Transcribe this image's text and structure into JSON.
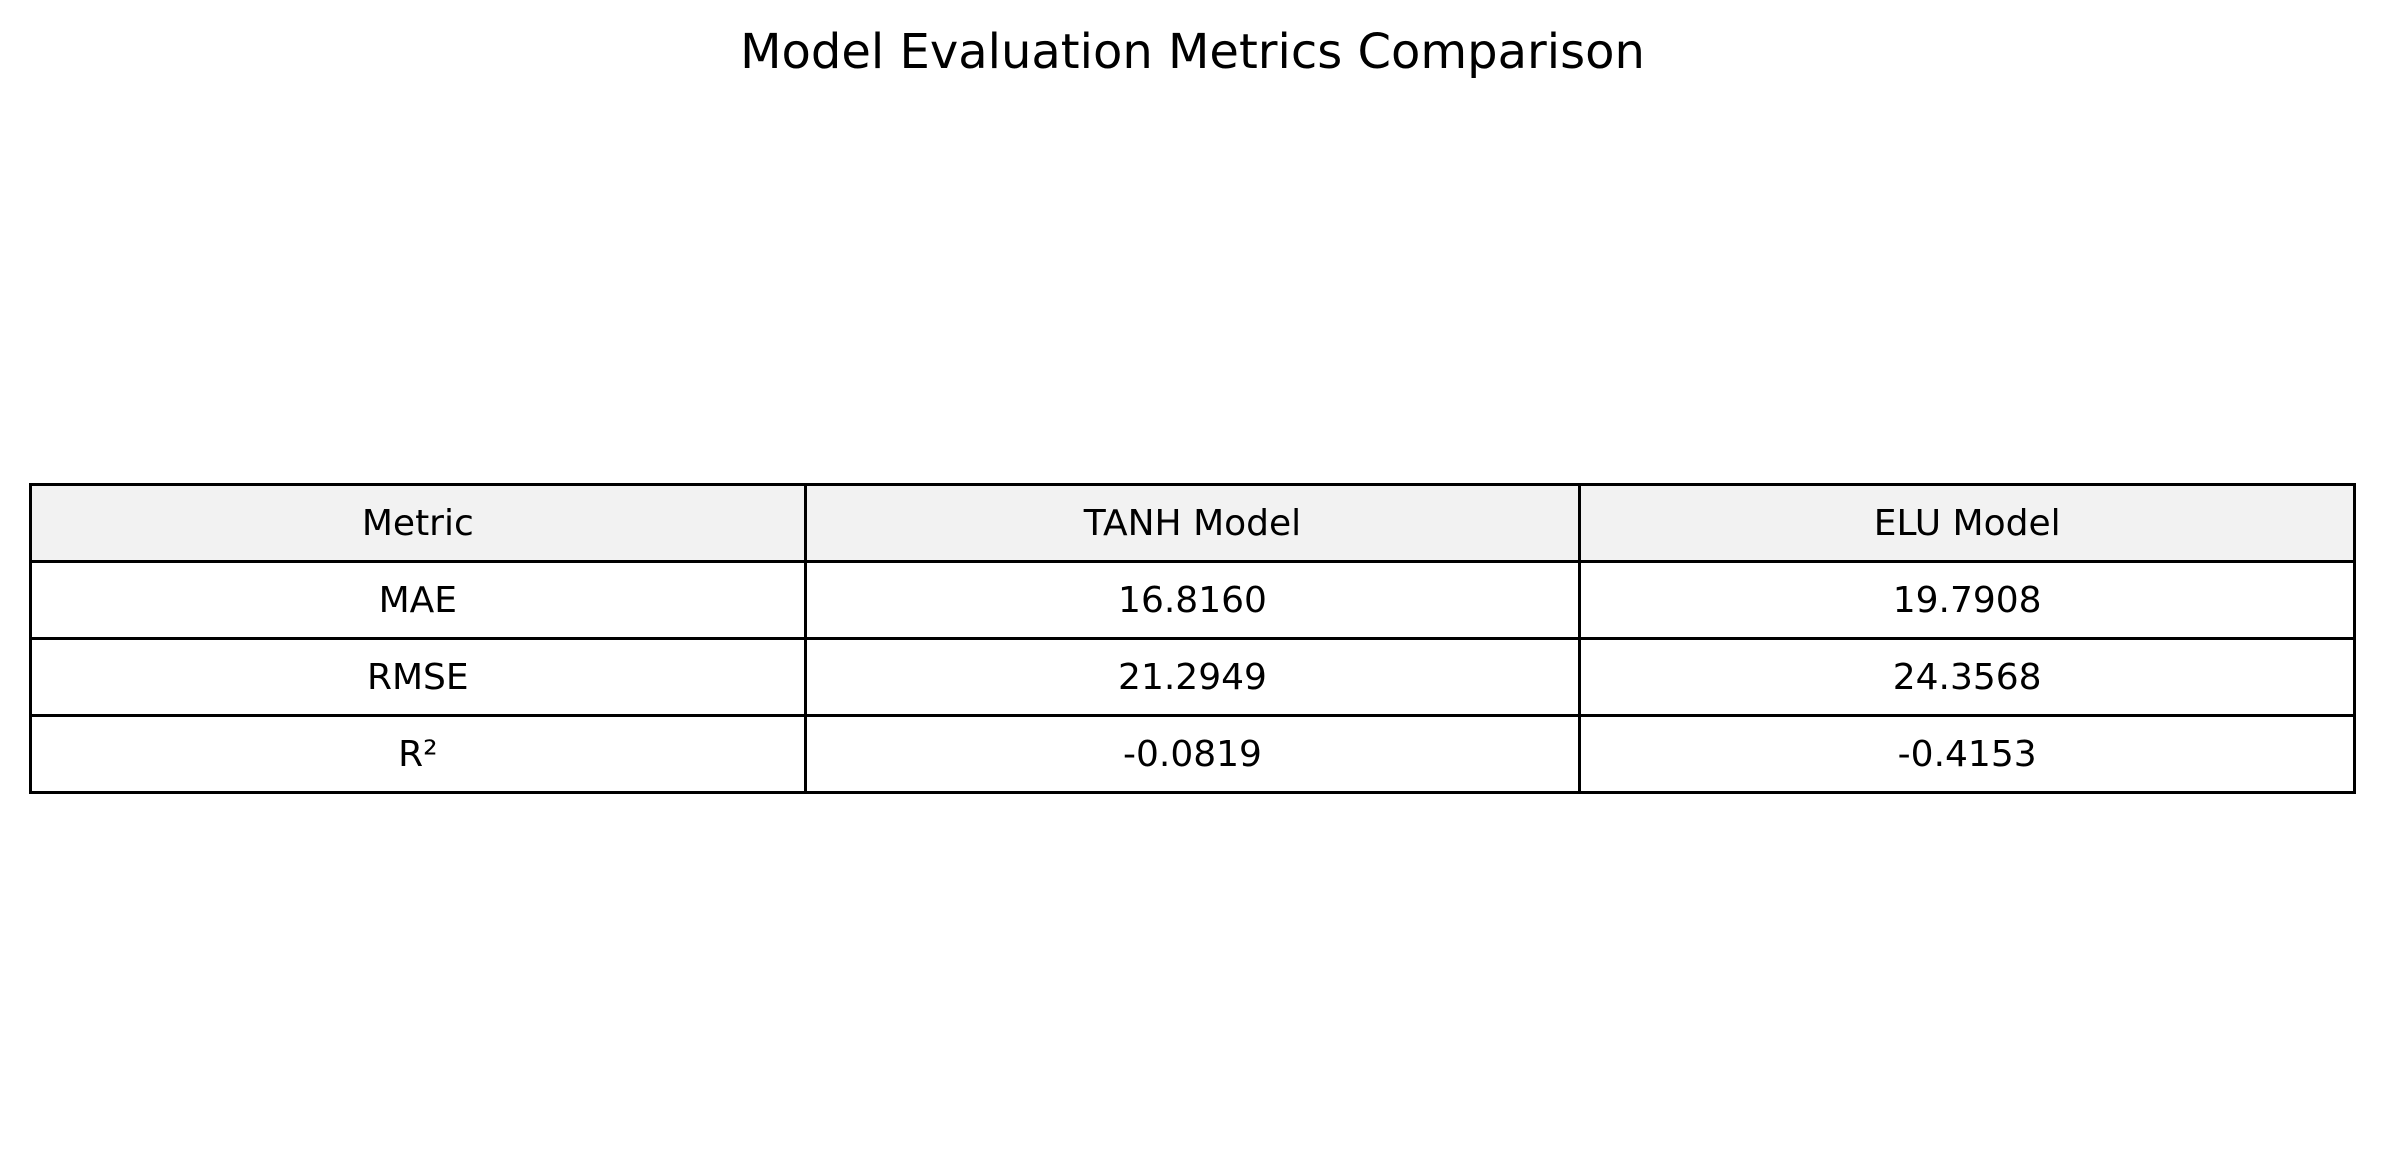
{
  "chart_data": {
    "type": "table",
    "title": "Model Evaluation Metrics Comparison",
    "columns": [
      "Metric",
      "TANH Model",
      "ELU Model"
    ],
    "rows": [
      [
        "MAE",
        "16.8160",
        "19.7908"
      ],
      [
        "RMSE",
        "21.2949",
        "24.3568"
      ],
      [
        "R²",
        "-0.0819",
        "-0.4153"
      ]
    ],
    "header_background": "#f2f2f2",
    "border_color": "#000000"
  }
}
